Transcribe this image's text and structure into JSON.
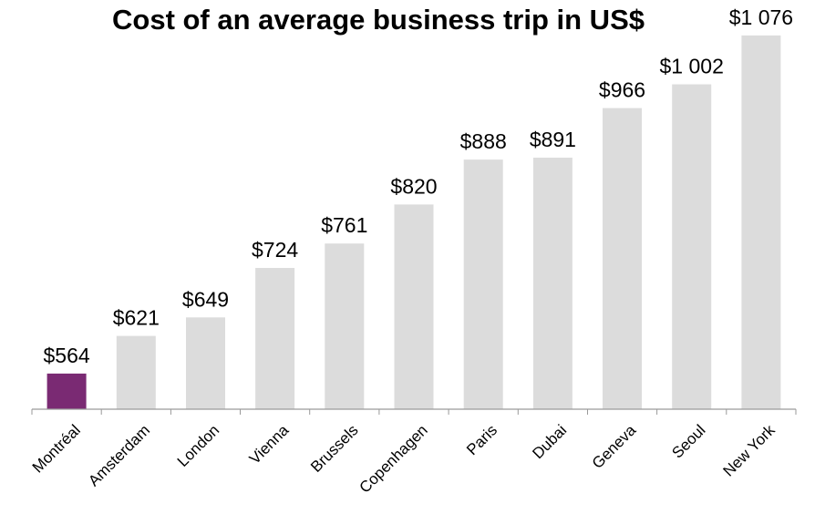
{
  "chart_data": {
    "type": "bar",
    "title": "Cost of an average business trip in US$",
    "xlabel": "",
    "ylabel": "",
    "categories": [
      "Montréal",
      "Amsterdam",
      "London",
      "Vienna",
      "Brussels",
      "Copenhagen",
      "Paris",
      "Dubai",
      "Geneva",
      "Seoul",
      "New York"
    ],
    "values": [
      564,
      621,
      649,
      724,
      761,
      820,
      888,
      891,
      966,
      1002,
      1076
    ],
    "value_labels": [
      "$564",
      "$621",
      "$649",
      "$724",
      "$761",
      "$820",
      "$888",
      "$891",
      "$966",
      "$1 002",
      "$1 076"
    ],
    "ylim": [
      510,
      1090
    ],
    "grid": false,
    "colors": {
      "highlight": "#7a2a73",
      "default": "#dcdcdc",
      "axis": "#9a9a9a"
    },
    "highlight_index": 0
  }
}
